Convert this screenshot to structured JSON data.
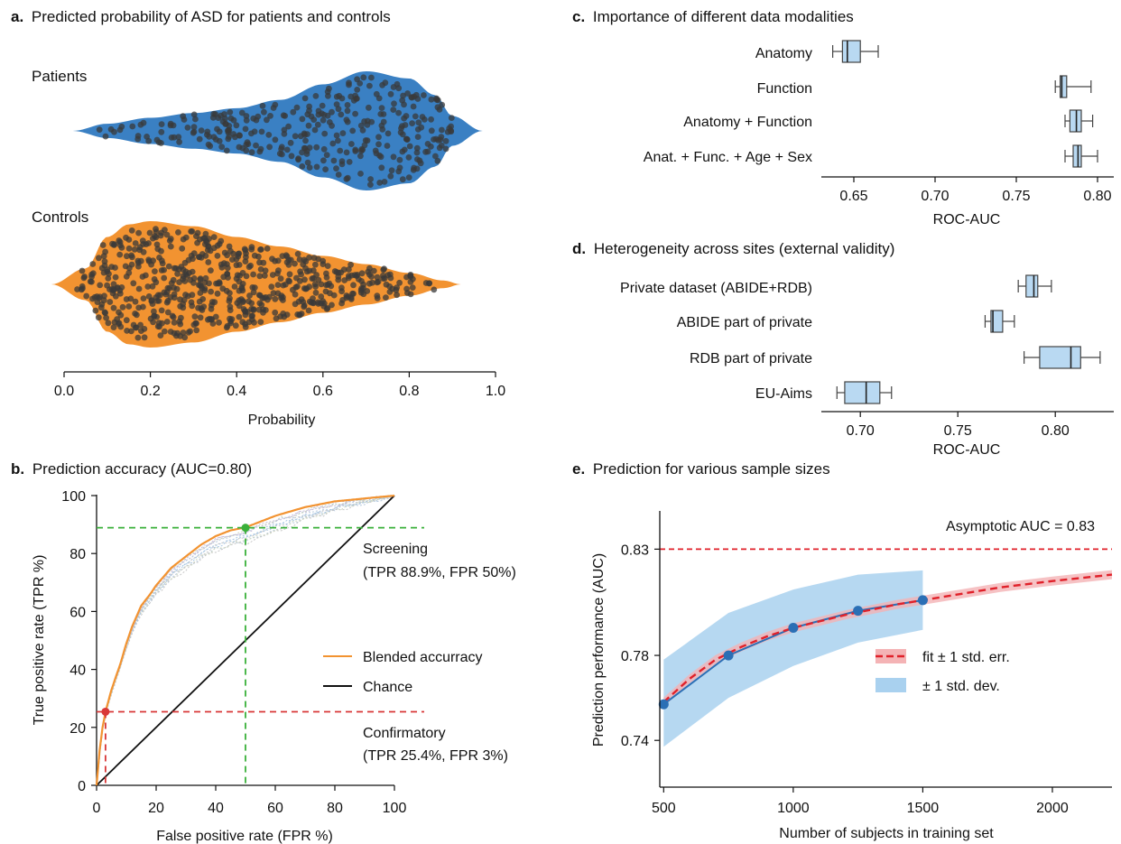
{
  "colors": {
    "patients": "#3a80c3",
    "controls": "#f29331",
    "dot": "#3a3a3a",
    "box_fill": "#b9d9f2",
    "roc": "#f29331",
    "chance": "#111111",
    "screening_line": "#3ab03a",
    "confirm_line": "#d93838",
    "fit": "#e0212a",
    "fit_band": "#f4b3b5",
    "std_band": "#a9d1ef",
    "dots_e": "#2b6fb5"
  },
  "chart_data": [
    {
      "id": "a",
      "type": "violin",
      "title_letter": "a.",
      "title": "Predicted probability of ASD for patients and controls",
      "xlabel": "Probability",
      "xlim": [
        0.0,
        1.0
      ],
      "xticks": [
        "0.0",
        "0.2",
        "0.4",
        "0.6",
        "0.8",
        "1.0"
      ],
      "groups": [
        {
          "name": "Patients",
          "range": [
            0.02,
            0.97
          ],
          "mode": 0.7,
          "profile": [
            [
              0.02,
              0.0
            ],
            [
              0.1,
              0.12
            ],
            [
              0.2,
              0.22
            ],
            [
              0.3,
              0.3
            ],
            [
              0.4,
              0.38
            ],
            [
              0.5,
              0.52
            ],
            [
              0.6,
              0.78
            ],
            [
              0.7,
              1.0
            ],
            [
              0.8,
              0.88
            ],
            [
              0.86,
              0.6
            ],
            [
              0.9,
              0.25
            ],
            [
              0.97,
              0.0
            ]
          ]
        },
        {
          "name": "Controls",
          "range": [
            -0.03,
            0.92
          ],
          "mode": 0.2,
          "profile": [
            [
              -0.03,
              0.0
            ],
            [
              0.05,
              0.25
            ],
            [
              0.1,
              0.75
            ],
            [
              0.15,
              0.95
            ],
            [
              0.2,
              1.0
            ],
            [
              0.3,
              0.92
            ],
            [
              0.4,
              0.75
            ],
            [
              0.5,
              0.6
            ],
            [
              0.6,
              0.45
            ],
            [
              0.7,
              0.32
            ],
            [
              0.8,
              0.18
            ],
            [
              0.88,
              0.06
            ],
            [
              0.92,
              0.0
            ]
          ]
        }
      ]
    },
    {
      "id": "b",
      "type": "line",
      "title_letter": "b.",
      "title": "Prediction accuracy (AUC=0.80)",
      "xlabel": "False positive rate (FPR %)",
      "ylabel": "True positive rate (TPR %)",
      "xlim": [
        0,
        100
      ],
      "ylim": [
        0,
        100
      ],
      "xticks": [
        "0",
        "20",
        "40",
        "60",
        "80",
        "100"
      ],
      "yticks": [
        "0",
        "20",
        "40",
        "60",
        "80",
        "100"
      ],
      "series": [
        {
          "name": "Blended accurracy",
          "x": [
            0,
            1,
            2,
            3,
            5,
            8,
            10,
            12,
            15,
            18,
            20,
            25,
            30,
            35,
            40,
            45,
            50,
            55,
            60,
            70,
            80,
            90,
            100
          ],
          "y": [
            0,
            12,
            20,
            25.4,
            33,
            42,
            49,
            55,
            62,
            66,
            69,
            75,
            79,
            83,
            86,
            88,
            89,
            91,
            93,
            96,
            98,
            99,
            100
          ]
        },
        {
          "name": "Chance",
          "x": [
            0,
            100
          ],
          "y": [
            0,
            100
          ]
        }
      ],
      "operating_points": [
        {
          "label": "Screening",
          "detail": "(TPR 88.9%, FPR 50%)",
          "fpr": 50,
          "tpr": 88.9
        },
        {
          "label": "Confirmatory",
          "detail": "(TPR 25.4%, FPR 3%)",
          "fpr": 3,
          "tpr": 25.4
        }
      ]
    },
    {
      "id": "c",
      "type": "box",
      "title_letter": "c.",
      "title": "Importance of different data modalities",
      "xlabel": "ROC-AUC",
      "xlim": [
        0.63,
        0.81
      ],
      "xticks": [
        "0.65",
        "0.70",
        "0.75",
        "0.80"
      ],
      "categories": [
        "Anatomy",
        "Function",
        "Anatomy + Function",
        "Anat. + Func. + Age + Sex"
      ],
      "boxes": [
        {
          "min": 0.637,
          "q1": 0.643,
          "median": 0.646,
          "q3": 0.654,
          "max": 0.665
        },
        {
          "min": 0.774,
          "q1": 0.777,
          "median": 0.778,
          "q3": 0.781,
          "max": 0.796
        },
        {
          "min": 0.78,
          "q1": 0.783,
          "median": 0.787,
          "q3": 0.79,
          "max": 0.797
        },
        {
          "min": 0.78,
          "q1": 0.785,
          "median": 0.788,
          "q3": 0.79,
          "max": 0.8
        }
      ]
    },
    {
      "id": "d",
      "type": "box",
      "title_letter": "d.",
      "title": "Heterogeneity across sites (external validity)",
      "xlabel": "ROC-AUC",
      "xlim": [
        0.68,
        0.83
      ],
      "xticks": [
        "0.70",
        "0.75",
        "0.80"
      ],
      "categories": [
        "Private dataset (ABIDE+RDB)",
        "ABIDE part of private",
        "RDB part of private",
        "EU-Aims"
      ],
      "boxes": [
        {
          "min": 0.781,
          "q1": 0.785,
          "median": 0.789,
          "q3": 0.791,
          "max": 0.798
        },
        {
          "min": 0.764,
          "q1": 0.767,
          "median": 0.768,
          "q3": 0.773,
          "max": 0.779
        },
        {
          "min": 0.784,
          "q1": 0.792,
          "median": 0.808,
          "q3": 0.813,
          "max": 0.823
        },
        {
          "min": 0.688,
          "q1": 0.692,
          "median": 0.703,
          "q3": 0.71,
          "max": 0.716
        }
      ]
    },
    {
      "id": "e",
      "type": "line",
      "title_letter": "e.",
      "title": "Prediction for various sample sizes",
      "xlabel": "Number of subjects in training set",
      "ylabel": "Prediction performance (AUC)",
      "xlim": [
        485,
        2230
      ],
      "ylim": [
        0.718,
        0.848
      ],
      "xticks": [
        "500",
        "1000",
        "1500",
        "2000"
      ],
      "yticks": [
        "0.74",
        "0.78",
        "0.83"
      ],
      "asymptote": {
        "value": 0.83,
        "label": "Asymptotic AUC = 0.83"
      },
      "points": {
        "x": [
          500,
          750,
          1000,
          1250,
          1500
        ],
        "y": [
          0.757,
          0.78,
          0.793,
          0.801,
          0.806
        ]
      },
      "std_band": {
        "x": [
          500,
          750,
          1000,
          1250,
          1500
        ],
        "lower": [
          0.737,
          0.76,
          0.775,
          0.786,
          0.792
        ],
        "upper": [
          0.778,
          0.8,
          0.811,
          0.818,
          0.82
        ]
      },
      "fit": {
        "x": [
          500,
          600,
          700,
          800,
          900,
          1000,
          1200,
          1400,
          1600,
          1800,
          2000,
          2230
        ],
        "y": [
          0.758,
          0.769,
          0.778,
          0.784,
          0.789,
          0.793,
          0.799,
          0.804,
          0.808,
          0.812,
          0.815,
          0.818
        ]
      },
      "legend": [
        {
          "label": "fit ± 1 std. err."
        },
        {
          "label": "± 1 std. dev."
        }
      ]
    }
  ]
}
